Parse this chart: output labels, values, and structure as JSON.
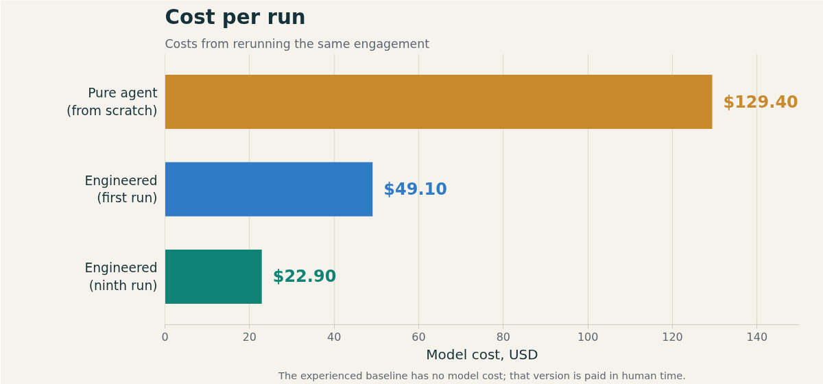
{
  "chart_data": {
    "type": "bar",
    "orientation": "horizontal",
    "title": "Cost per run",
    "subtitle": "Costs from rerunning the same engagement",
    "xlabel": "Model cost, USD",
    "categories": [
      "Pure agent\n(from scratch)",
      "Engineered\n(first run)",
      "Engineered\n(ninth run)"
    ],
    "values": [
      129.4,
      49.1,
      22.9
    ],
    "colors": [
      "#c98a2e",
      "#2f7bc8",
      "#0f8476"
    ],
    "value_labels": [
      "$129.40",
      "$49.10",
      "$22.90"
    ],
    "xlim": [
      0,
      150
    ],
    "xticks": [
      0,
      20,
      40,
      60,
      80,
      100,
      120,
      140
    ],
    "grid": "x",
    "annotations": [
      "The experienced baseline has no model cost; that version is paid in human time."
    ]
  }
}
